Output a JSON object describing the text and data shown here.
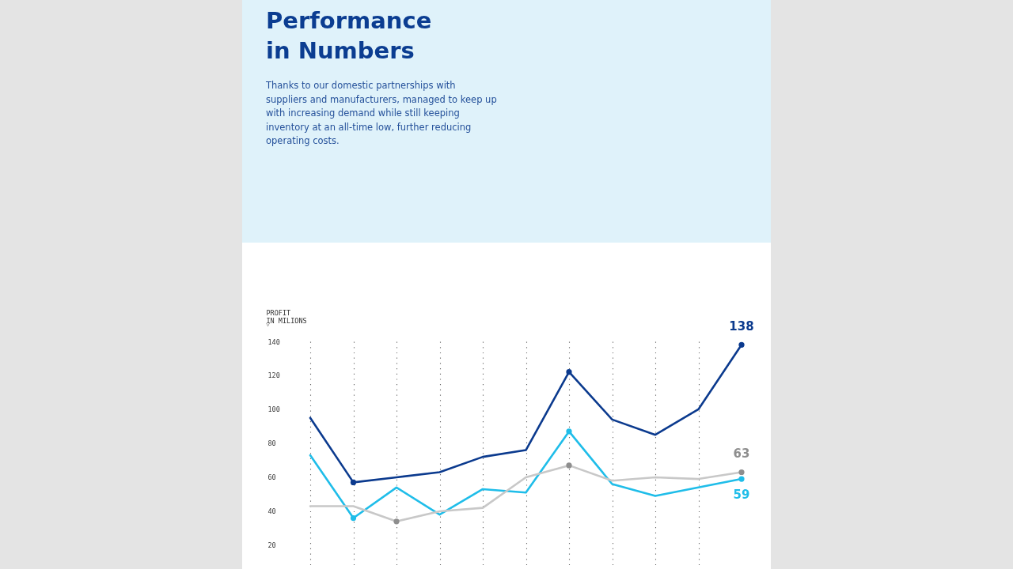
{
  "chart_data": {
    "type": "line",
    "title": "Performance in Numbers",
    "subtitle": "Thanks to our domestic partnerships with suppliers and manufacturers, managed to keep up with increasing demand while still keeping inventory at an all-time low, further reducing operating costs.",
    "ylabel": "PROFIT IN MILIONS",
    "annotations": [
      "˅"
    ],
    "categories": [
      null,
      null,
      null,
      null,
      null,
      null,
      null,
      null,
      null,
      null,
      null
    ],
    "ylim": [
      6,
      140
    ],
    "yticks": [
      20,
      40,
      60,
      80,
      100,
      120,
      140
    ],
    "tick_labels": "y",
    "grid": "x",
    "line_style": "solid",
    "series": [
      {
        "color": "#0b3a8e",
        "values": [
          95,
          57,
          60,
          63,
          72,
          76,
          122,
          94,
          85,
          100,
          138
        ]
      },
      {
        "color": "#1fbde9",
        "values": [
          73,
          36,
          54,
          38,
          53,
          51,
          87,
          56,
          49,
          54,
          59
        ]
      },
      {
        "color": "#c8c8c8",
        "values": [
          43,
          43,
          34,
          40,
          42,
          60,
          67,
          58,
          60,
          59,
          63
        ]
      },
      {
        "type": "scatter",
        "marker": "circle",
        "color": "#0b3a8e",
        "values": [
          null,
          57,
          null,
          null,
          null,
          null,
          122,
          null,
          null,
          null,
          138
        ],
        "value_labels": [
          null,
          null,
          null,
          null,
          null,
          null,
          null,
          null,
          null,
          null,
          "138"
        ]
      },
      {
        "type": "scatter",
        "marker": "circle",
        "color": "#1fbde9",
        "values": [
          null,
          36,
          null,
          null,
          null,
          null,
          87,
          null,
          null,
          null,
          59
        ],
        "value_labels": [
          null,
          null,
          null,
          null,
          null,
          null,
          null,
          null,
          null,
          null,
          "59"
        ]
      },
      {
        "type": "scatter",
        "marker": "circle",
        "color": "#8e8e8e",
        "values": [
          null,
          null,
          34,
          null,
          null,
          null,
          67,
          null,
          null,
          null,
          63
        ],
        "value_labels": [
          null,
          null,
          null,
          null,
          null,
          null,
          null,
          null,
          null,
          null,
          "63"
        ]
      }
    ]
  }
}
